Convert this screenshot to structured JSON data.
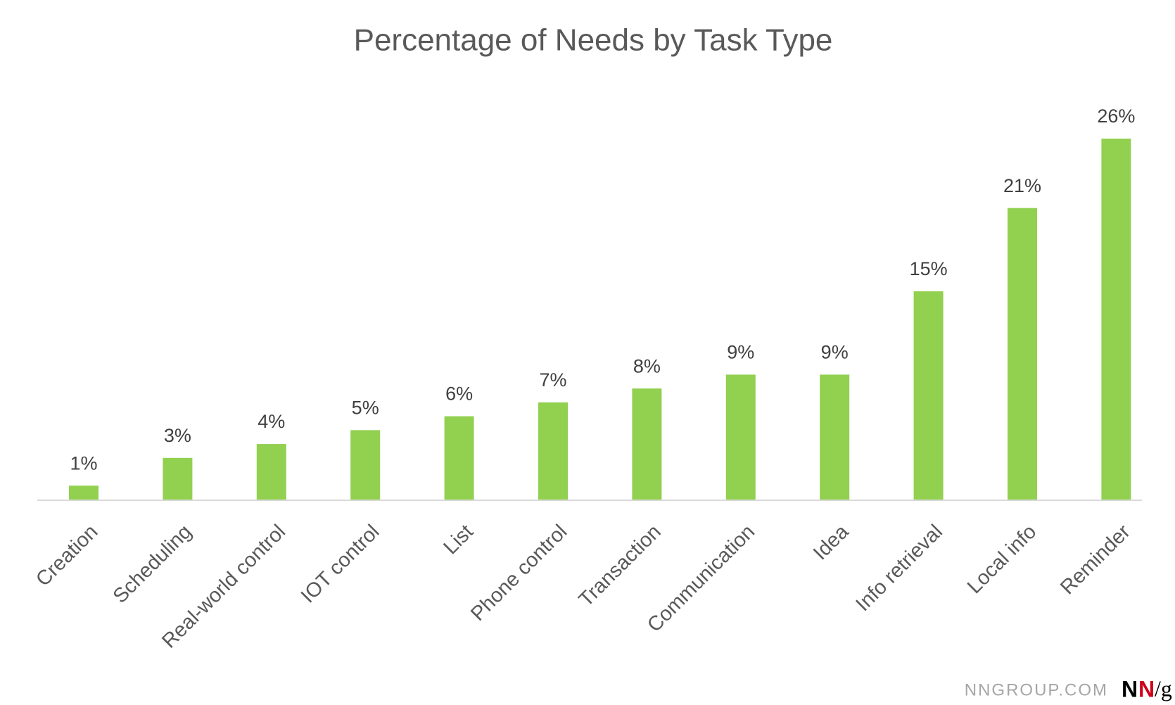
{
  "chart_data": {
    "type": "bar",
    "title": "Percentage of Needs by Task Type",
    "categories": [
      "Creation",
      "Scheduling",
      "Real-world control",
      "IOT control",
      "List",
      "Phone control",
      "Transaction",
      "Communication",
      "Idea",
      "Info retrieval",
      "Local info",
      "Reminder"
    ],
    "values": [
      1,
      3,
      4,
      5,
      6,
      7,
      8,
      9,
      9,
      15,
      21,
      26
    ],
    "value_labels": [
      "1%",
      "3%",
      "4%",
      "5%",
      "6%",
      "7%",
      "8%",
      "9%",
      "9%",
      "15%",
      "21%",
      "26%"
    ],
    "color": "#92d050"
  },
  "footer": {
    "site": "NNGROUP.COM",
    "logo": [
      "N",
      "N",
      "/g"
    ]
  }
}
